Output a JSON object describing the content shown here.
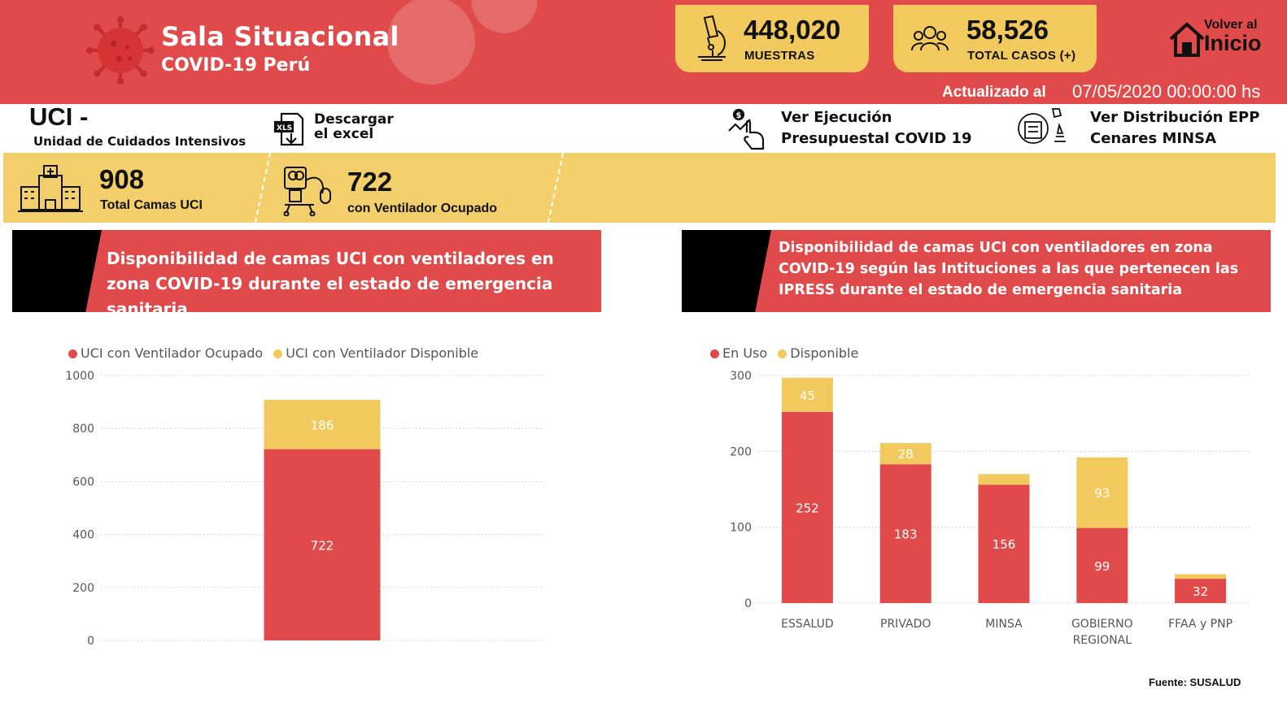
{
  "header": {
    "title": "Sala Situacional",
    "subtitle": "COVID-19 Perú",
    "kpis": [
      {
        "value": "448,020",
        "label": "MUESTRAS",
        "icon": "microscope-icon"
      },
      {
        "value": "58,526",
        "label": "TOTAL CASOS (+)",
        "icon": "people-icon"
      }
    ],
    "home": {
      "line1": "Volver al",
      "line2": "Inicio"
    },
    "updated_label": "Actualizado al",
    "updated_value": "07/05/2020 00:00:00 hs"
  },
  "toolbar": {
    "section_title": "UCI  -",
    "section_subtitle": "Unidad de Cuidados Intensivos",
    "download_label": "Descargar el excel",
    "execution_label": "Ver Ejecución Presupuestal COVID 19",
    "epp_label": "Ver Distribución EPP Cenares MINSA"
  },
  "band": {
    "beds_value": "908",
    "beds_label": "Total Camas UCI",
    "vent_value": "722",
    "vent_label": "con Ventilador Ocupado"
  },
  "colors": {
    "red": "#e04a4a",
    "yellow": "#f2c95c",
    "band": "#f2cf6a"
  },
  "chart_data": [
    {
      "type": "bar",
      "stacked": true,
      "title": "Disponibilidad  de camas UCI con ventiladores en zona COVID-19 durante el estado de emergencia sanitaria",
      "categories": [
        ""
      ],
      "series": [
        {
          "name": "UCI con Ventilador Ocupado",
          "values": [
            722
          ],
          "color": "#e04a4a"
        },
        {
          "name": "UCI con Ventilador Disponible",
          "values": [
            186
          ],
          "color": "#f2c95c"
        }
      ],
      "ylim": [
        0,
        1000
      ],
      "yticks": [
        0,
        200,
        400,
        600,
        800,
        1000
      ],
      "legend": "top-left",
      "grid": true
    },
    {
      "type": "bar",
      "stacked": true,
      "title": "Disponibilidad de camas UCI con ventiladores en zona COVID-19 según las Intituciones a las que pertenecen las IPRESS durante el estado de emergencia sanitaria",
      "categories": [
        "ESSALUD",
        "PRIVADO",
        "MINSA",
        "GOBIERNO REGIONAL",
        "FFAA y PNP"
      ],
      "series": [
        {
          "name": "En Uso",
          "values": [
            252,
            183,
            156,
            99,
            32
          ],
          "color": "#e04a4a"
        },
        {
          "name": "Disponible",
          "values": [
            45,
            28,
            14,
            93,
            6
          ],
          "color": "#f2c95c"
        }
      ],
      "data_labels": {
        "En Uso": [
          "252",
          "183",
          "156",
          "99",
          "32"
        ],
        "Disponible": [
          "45",
          "28",
          "",
          "93",
          ""
        ]
      },
      "ylim": [
        0,
        300
      ],
      "yticks": [
        0,
        100,
        200,
        300
      ],
      "legend": "top-left",
      "grid": true
    }
  ],
  "source": "Fuente: SUSALUD"
}
